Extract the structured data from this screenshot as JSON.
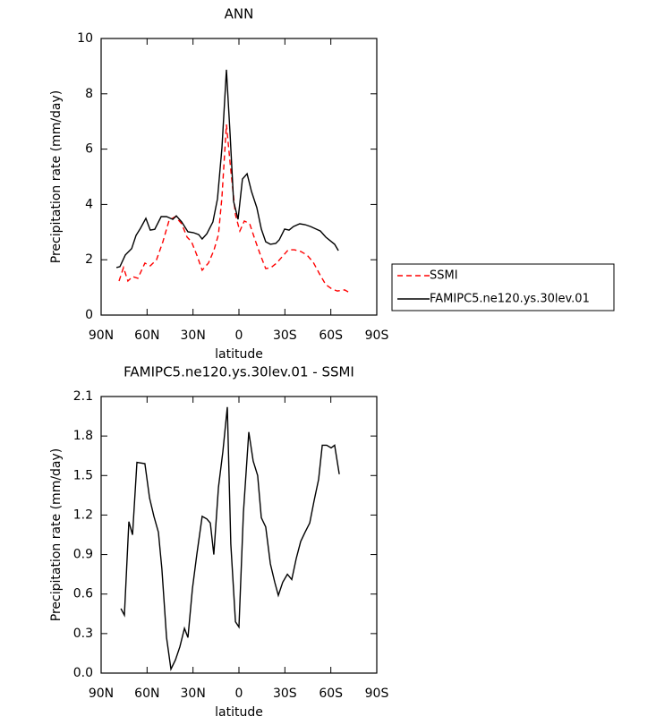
{
  "chart_data": [
    {
      "type": "line",
      "title": "ANN",
      "xlabel": "latitude",
      "ylabel": "Precipitation rate (mm/day)",
      "xlim": [
        90,
        -90
      ],
      "xticks": [
        {
          "value": 90,
          "label": "90N"
        },
        {
          "value": 60,
          "label": "60N"
        },
        {
          "value": 30,
          "label": "30N"
        },
        0,
        {
          "value": -30,
          "label": "30S"
        },
        {
          "value": -60,
          "label": "60S"
        },
        {
          "value": -90,
          "label": "90S"
        }
      ],
      "ylim": [
        0,
        10
      ],
      "yticks": [
        0,
        2,
        4,
        6,
        8,
        10
      ],
      "legend": "right",
      "series": [
        {
          "name": "SSMI",
          "color": "#ff0000",
          "dashed": true,
          "x": [
            78.3,
            75.4,
            72.5,
            69.5,
            66,
            61.4,
            57.9,
            53.8,
            49.7,
            45.6,
            41.5,
            37.4,
            33.9,
            31,
            27.5,
            24,
            19.9,
            16.4,
            13.4,
            11.1,
            8.2,
            5.3,
            2.3,
            -0.6,
            -3.5,
            -7,
            -10.5,
            -14,
            -17.5,
            -21,
            -24.6,
            -28.1,
            -32.2,
            -36.2,
            -40.3,
            -44.4,
            -48.5,
            -52.6,
            -56.7,
            -60.8,
            -64.3,
            -69,
            -73.1
          ],
          "values": [
            1.23,
            1.72,
            1.23,
            1.39,
            1.33,
            1.88,
            1.78,
            2.0,
            2.65,
            3.43,
            3.56,
            3.3,
            2.82,
            2.65,
            2.17,
            1.62,
            1.88,
            2.33,
            2.91,
            4.27,
            6.89,
            5.24,
            3.62,
            3.04,
            3.4,
            3.3,
            2.72,
            2.17,
            1.68,
            1.72,
            1.88,
            2.1,
            2.36,
            2.36,
            2.3,
            2.17,
            1.91,
            1.49,
            1.1,
            0.94,
            0.87,
            0.91,
            0.78
          ]
        },
        {
          "name": "FAMIPC5.ne120.ys.30lev.01",
          "color": "#000000",
          "dashed": false,
          "x": [
            80,
            77.7,
            74.2,
            70.1,
            67.2,
            64.3,
            60.8,
            57.9,
            55,
            50.8,
            47.3,
            43.2,
            40.9,
            37.4,
            33.3,
            29.8,
            26.3,
            24,
            21,
            17,
            14,
            11.1,
            8.2,
            5.8,
            3.5,
            0.6,
            -2.3,
            -5.3,
            -8.2,
            -11.7,
            -14.6,
            -17.5,
            -20.5,
            -24,
            -26.3,
            -29.8,
            -32.7,
            -35.6,
            -39.7,
            -43.2,
            -46.8,
            -50.3,
            -53.2,
            -56.7,
            -59.6,
            -62.5,
            -64.9
          ],
          "values": [
            1.72,
            1.75,
            2.17,
            2.4,
            2.88,
            3.14,
            3.5,
            3.07,
            3.1,
            3.56,
            3.56,
            3.46,
            3.59,
            3.37,
            3.01,
            2.98,
            2.91,
            2.75,
            2.94,
            3.37,
            4.2,
            6.05,
            8.87,
            6.54,
            4.11,
            3.46,
            4.92,
            5.11,
            4.47,
            3.88,
            3.11,
            2.65,
            2.56,
            2.59,
            2.72,
            3.11,
            3.07,
            3.2,
            3.3,
            3.27,
            3.2,
            3.11,
            3.04,
            2.82,
            2.69,
            2.56,
            2.33
          ]
        }
      ]
    },
    {
      "type": "line",
      "title": "FAMIPC5.ne120.ys.30lev.01 - SSMI",
      "xlabel": "latitude",
      "ylabel": "Precipitation rate (mm/day)",
      "xlim": [
        90,
        -90
      ],
      "xticks": [
        {
          "value": 90,
          "label": "90N"
        },
        {
          "value": 60,
          "label": "60N"
        },
        {
          "value": 30,
          "label": "30N"
        },
        0,
        {
          "value": -30,
          "label": "30S"
        },
        {
          "value": -60,
          "label": "60S"
        },
        {
          "value": -90,
          "label": "90S"
        }
      ],
      "ylim": [
        0,
        2.1
      ],
      "yticks": [
        {
          "value": 0,
          "label": "0.0"
        },
        0.3,
        0.6,
        0.9,
        1.2,
        1.5,
        1.8,
        2.1
      ],
      "series": [
        {
          "color": "#000000",
          "dashed": false,
          "x": [
            77.1,
            74.8,
            71.9,
            69.5,
            66.6,
            61.4,
            58.4,
            55.5,
            52.6,
            50.3,
            47.3,
            44.4,
            41.5,
            38.6,
            35.6,
            33.3,
            30.4,
            27.5,
            24,
            21,
            18.7,
            16.4,
            13.4,
            10.5,
            7.6,
            5.3,
            2.3,
            0,
            -2.9,
            -6.4,
            -9.3,
            -12.2,
            -14.6,
            -17.5,
            -20.5,
            -23.4,
            -25.7,
            -28.6,
            -31.6,
            -34.5,
            -37.4,
            -40.3,
            -43.2,
            -46.2,
            -49.1,
            -52,
            -54.4,
            -57.3,
            -60.2,
            -62.5,
            -65.5
          ],
          "values": [
            0.49,
            0.44,
            1.15,
            1.05,
            1.6,
            1.59,
            1.33,
            1.19,
            1.07,
            0.79,
            0.27,
            0.03,
            0.1,
            0.2,
            0.34,
            0.27,
            0.64,
            0.9,
            1.19,
            1.17,
            1.14,
            0.9,
            1.41,
            1.68,
            2.02,
            0.98,
            0.39,
            0.35,
            1.22,
            1.83,
            1.61,
            1.5,
            1.18,
            1.11,
            0.83,
            0.69,
            0.59,
            0.69,
            0.75,
            0.71,
            0.87,
            1.0,
            1.07,
            1.14,
            1.31,
            1.47,
            1.73,
            1.73,
            1.71,
            1.73,
            1.51
          ]
        }
      ]
    }
  ]
}
